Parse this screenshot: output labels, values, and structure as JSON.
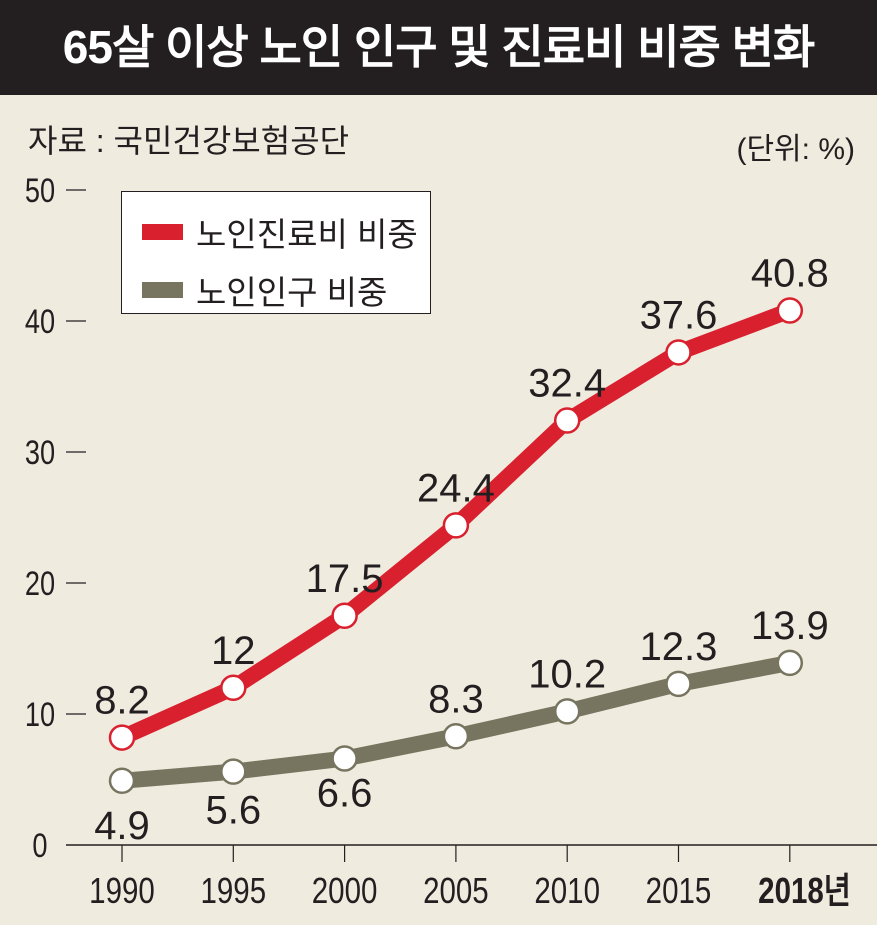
{
  "title": "65살 이상 노인 인구 및 진료비 비중 변화",
  "source": "자료 : 국민건강보험공단",
  "unit": "(단위: %)",
  "colors": {
    "medical": "#d9202e",
    "population": "#77755f",
    "background": "#efebdf"
  },
  "chart_data": {
    "type": "line",
    "title": "65살 이상 노인 인구 및 진료비 비중 변화",
    "xlabel": "",
    "ylabel": "",
    "ylim": [
      0,
      50
    ],
    "yticks": [
      "0",
      "10",
      "20",
      "30",
      "40",
      "50"
    ],
    "categories": [
      "1990",
      "1995",
      "2000",
      "2005",
      "2010",
      "2015",
      "2018년"
    ],
    "legend_position": "top-left",
    "series": [
      {
        "name": "노인진료비 비중",
        "values": [
          8.2,
          12,
          17.5,
          24.4,
          32.4,
          37.6,
          40.8
        ],
        "labels": [
          "8.2",
          "12",
          "17.5",
          "24.4",
          "32.4",
          "37.6",
          "40.8"
        ]
      },
      {
        "name": "노인인구 비중",
        "values": [
          4.9,
          5.6,
          6.6,
          8.3,
          10.2,
          12.3,
          13.9
        ],
        "labels": [
          "4.9",
          "5.6",
          "6.6",
          "8.3",
          "10.2",
          "12.3",
          "13.9"
        ]
      }
    ]
  }
}
